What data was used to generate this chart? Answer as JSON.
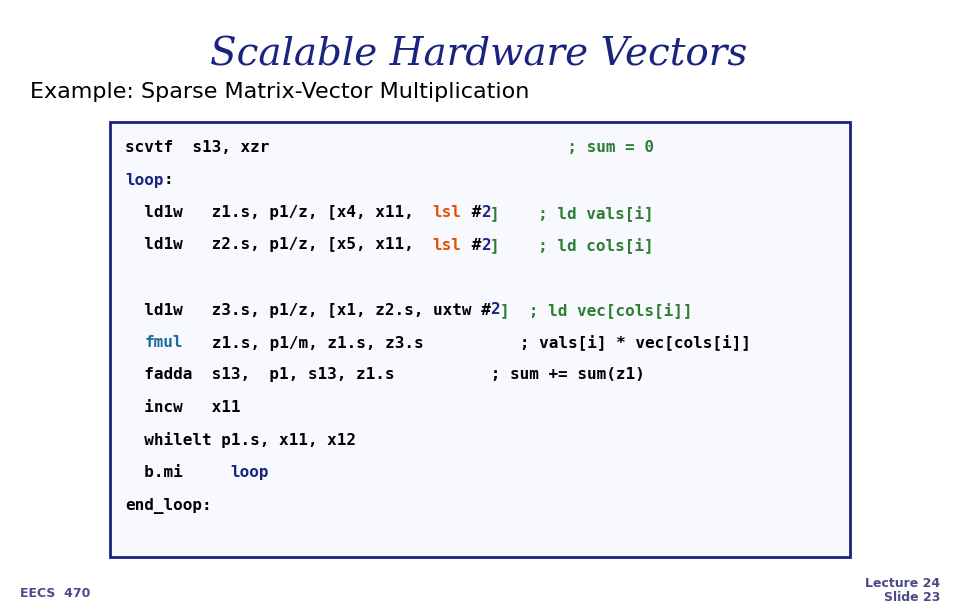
{
  "title": "Scalable Hardware Vectors",
  "subtitle": "Example: Sparse Matrix-Vector Multiplication",
  "title_color": "#1a237e",
  "subtitle_color": "#000000",
  "footer_left": "EECS  470",
  "footer_right_line1": "Lecture 24",
  "footer_right_line2": "Slide 23",
  "footer_color": "#4a4a8a",
  "bg_color": "#ffffff",
  "box_border_color": "#1a237e",
  "code_lines": [
    {
      "parts": [
        {
          "text": "scvtf  s13, xzr",
          "color": "#000000"
        },
        {
          "text": "                               ; sum = 0",
          "color": "#2e7d32"
        }
      ]
    },
    {
      "parts": [
        {
          "text": "loop",
          "color": "#1a237e"
        },
        {
          "text": ":",
          "color": "#000000"
        }
      ]
    },
    {
      "parts": [
        {
          "text": "  ld1w   z1.s, p1/z, [x4, x11,  ",
          "color": "#000000"
        },
        {
          "text": "lsl",
          "color": "#e65100"
        },
        {
          "text": " #",
          "color": "#000000"
        },
        {
          "text": "2",
          "color": "#1a237e"
        },
        {
          "text": "]    ; ld vals[i]",
          "color": "#2e7d32"
        }
      ]
    },
    {
      "parts": [
        {
          "text": "  ld1w   z2.s, p1/z, [x5, x11,  ",
          "color": "#000000"
        },
        {
          "text": "lsl",
          "color": "#e65100"
        },
        {
          "text": " #",
          "color": "#000000"
        },
        {
          "text": "2",
          "color": "#1a237e"
        },
        {
          "text": "]    ; ld cols[i]",
          "color": "#2e7d32"
        }
      ]
    },
    {
      "parts": []
    },
    {
      "parts": [
        {
          "text": "  ld1w   z3.s, p1/z, [x1, z2.s, uxtw #",
          "color": "#000000"
        },
        {
          "text": "2",
          "color": "#1a237e"
        },
        {
          "text": "]  ; ld vec[cols[i]]",
          "color": "#2e7d32"
        }
      ]
    },
    {
      "parts": [
        {
          "text": "  ",
          "color": "#000000"
        },
        {
          "text": "fmul",
          "color": "#1a6b9a"
        },
        {
          "text": "   z1.s, p1/m, z1.s, z3.s          ; vals[i] * vec[cols[i]]",
          "color": "#000000"
        }
      ]
    },
    {
      "parts": [
        {
          "text": "  fadda  s13,  p1, s13, z1.s          ; sum += sum(z1)",
          "color": "#000000"
        }
      ]
    },
    {
      "parts": [
        {
          "text": "  incw   x11",
          "color": "#000000"
        }
      ]
    },
    {
      "parts": [
        {
          "text": "  whilelt p1.s, x11, x12",
          "color": "#000000"
        }
      ]
    },
    {
      "parts": [
        {
          "text": "  b.mi     ",
          "color": "#000000"
        },
        {
          "text": "loop",
          "color": "#1a237e"
        }
      ]
    },
    {
      "parts": [
        {
          "text": "end_loop:",
          "color": "#000000"
        }
      ]
    }
  ],
  "code_font_size": 11.5,
  "title_font_size": 28,
  "subtitle_font_size": 16
}
